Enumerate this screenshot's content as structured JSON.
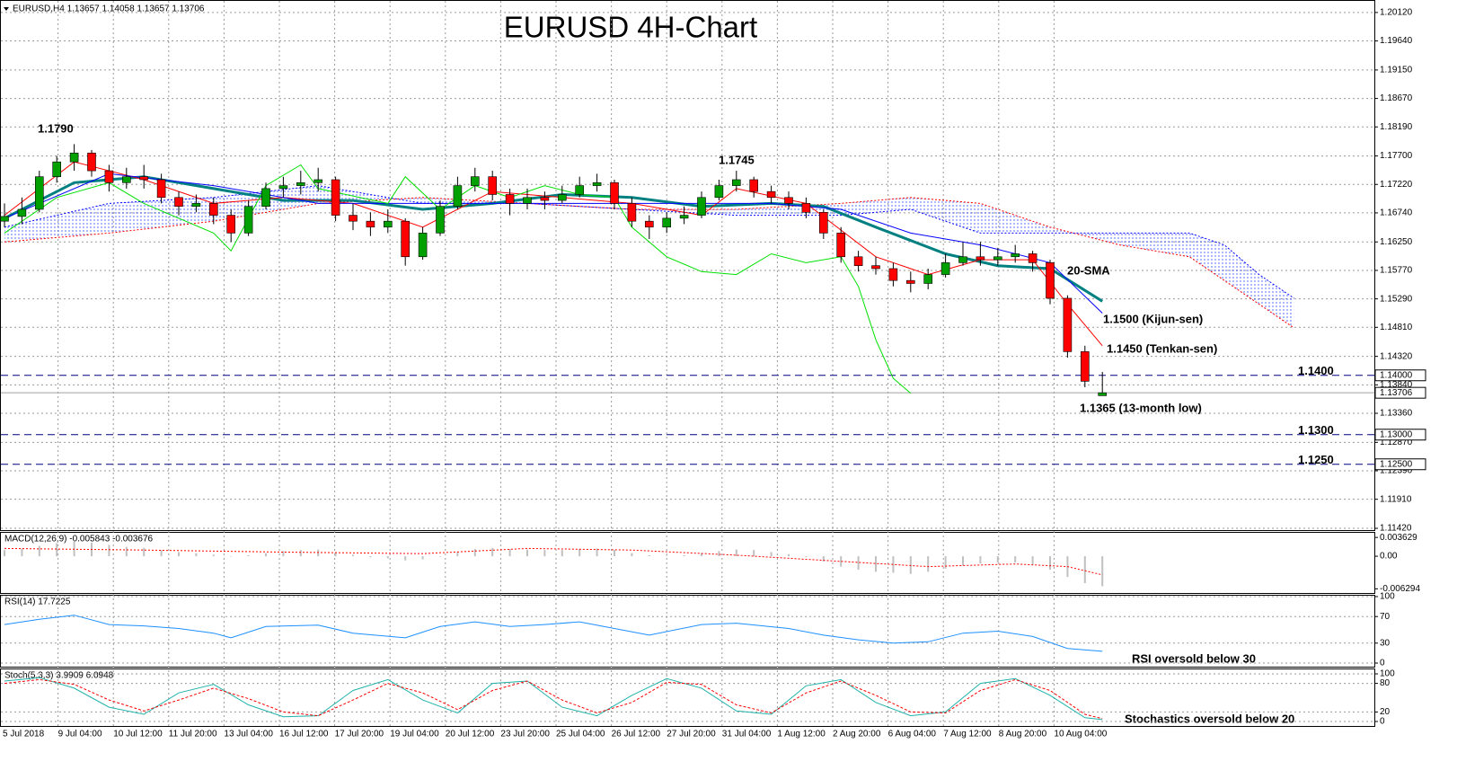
{
  "chart_data": {
    "type": "candlestick",
    "header": "EURUSD,H4  1.13657 1.14058 1.13657 1.13706",
    "title": "EURUSD 4H-Chart",
    "categories": [
      "5 Jul 2018",
      "9 Jul 04:00",
      "10 Jul 12:00",
      "11 Jul 20:00",
      "13 Jul 04:00",
      "16 Jul 12:00",
      "17 Jul 20:00",
      "19 Jul 04:00",
      "20 Jul 12:00",
      "23 Jul 20:00",
      "25 Jul 04:00",
      "26 Jul 12:00",
      "27 Jul 20:00",
      "31 Jul 04:00",
      "1 Aug 12:00",
      "2 Aug 20:00",
      "6 Aug 04:00",
      "7 Aug 12:00",
      "8 Aug 20:00",
      "10 Aug 04:00"
    ],
    "up_color": "#00a000",
    "down_color": "#ff0000",
    "candles": [
      [
        1.166,
        1.169,
        1.165,
        1.1668
      ],
      [
        1.1668,
        1.17,
        1.1655,
        1.168
      ],
      [
        1.168,
        1.1745,
        1.1675,
        1.1735
      ],
      [
        1.1735,
        1.177,
        1.1725,
        1.176
      ],
      [
        1.176,
        1.179,
        1.1745,
        1.1775
      ],
      [
        1.1775,
        1.178,
        1.1735,
        1.1745
      ],
      [
        1.1745,
        1.1755,
        1.171,
        1.1725
      ],
      [
        1.1725,
        1.175,
        1.1715,
        1.1735
      ],
      [
        1.1735,
        1.1755,
        1.1715,
        1.173
      ],
      [
        1.173,
        1.174,
        1.169,
        1.17
      ],
      [
        1.17,
        1.171,
        1.167,
        1.1685
      ],
      [
        1.1685,
        1.1705,
        1.1675,
        1.169
      ],
      [
        1.169,
        1.17,
        1.1655,
        1.167
      ],
      [
        1.167,
        1.168,
        1.1625,
        1.164
      ],
      [
        1.164,
        1.1695,
        1.1635,
        1.1685
      ],
      [
        1.1685,
        1.1725,
        1.168,
        1.1715
      ],
      [
        1.1715,
        1.1735,
        1.17,
        1.172
      ],
      [
        1.172,
        1.1745,
        1.1705,
        1.1725
      ],
      [
        1.1725,
        1.175,
        1.171,
        1.173
      ],
      [
        1.173,
        1.1735,
        1.166,
        1.167
      ],
      [
        1.167,
        1.169,
        1.1645,
        1.166
      ],
      [
        1.166,
        1.1675,
        1.1635,
        1.165
      ],
      [
        1.165,
        1.168,
        1.164,
        1.166
      ],
      [
        1.166,
        1.1665,
        1.1585,
        1.16
      ],
      [
        1.16,
        1.165,
        1.1595,
        1.164
      ],
      [
        1.164,
        1.1695,
        1.1635,
        1.1685
      ],
      [
        1.1685,
        1.1735,
        1.168,
        1.172
      ],
      [
        1.172,
        1.175,
        1.171,
        1.1735
      ],
      [
        1.1735,
        1.1745,
        1.1695,
        1.1705
      ],
      [
        1.1705,
        1.1715,
        1.167,
        1.169
      ],
      [
        1.169,
        1.1715,
        1.168,
        1.17
      ],
      [
        1.17,
        1.171,
        1.168,
        1.1695
      ],
      [
        1.1695,
        1.172,
        1.169,
        1.1705
      ],
      [
        1.1705,
        1.1735,
        1.17,
        1.172
      ],
      [
        1.172,
        1.174,
        1.171,
        1.1725
      ],
      [
        1.1725,
        1.173,
        1.168,
        1.169
      ],
      [
        1.169,
        1.17,
        1.165,
        1.166
      ],
      [
        1.166,
        1.167,
        1.163,
        1.165
      ],
      [
        1.165,
        1.1675,
        1.164,
        1.1665
      ],
      [
        1.1665,
        1.1685,
        1.1655,
        1.167
      ],
      [
        1.167,
        1.171,
        1.1665,
        1.17
      ],
      [
        1.17,
        1.173,
        1.1695,
        1.172
      ],
      [
        1.172,
        1.1745,
        1.171,
        1.173
      ],
      [
        1.173,
        1.1735,
        1.17,
        1.171
      ],
      [
        1.171,
        1.172,
        1.169,
        1.17
      ],
      [
        1.17,
        1.171,
        1.168,
        1.169
      ],
      [
        1.169,
        1.17,
        1.1665,
        1.1675
      ],
      [
        1.1675,
        1.168,
        1.163,
        1.164
      ],
      [
        1.164,
        1.165,
        1.159,
        1.16
      ],
      [
        1.16,
        1.161,
        1.1575,
        1.1585
      ],
      [
        1.1585,
        1.16,
        1.157,
        1.158
      ],
      [
        1.158,
        1.159,
        1.155,
        1.156
      ],
      [
        1.156,
        1.1575,
        1.154,
        1.1555
      ],
      [
        1.1555,
        1.158,
        1.1545,
        1.157
      ],
      [
        1.157,
        1.1605,
        1.1565,
        1.159
      ],
      [
        1.159,
        1.1625,
        1.1585,
        1.16
      ],
      [
        1.16,
        1.1625,
        1.1585,
        1.1595
      ],
      [
        1.1595,
        1.1615,
        1.1585,
        1.16
      ],
      [
        1.16,
        1.162,
        1.159,
        1.1605
      ],
      [
        1.1605,
        1.161,
        1.1575,
        1.159
      ],
      [
        1.159,
        1.1595,
        1.152,
        1.153
      ],
      [
        1.153,
        1.1535,
        1.143,
        1.144
      ],
      [
        1.144,
        1.145,
        1.138,
        1.139
      ],
      [
        1.13657,
        1.14058,
        1.13657,
        1.13706
      ]
    ],
    "ylim": [
      1.1139,
      1.203
    ],
    "yticks": [
      {
        "value": 1.2012,
        "label": "1.20120"
      },
      {
        "value": 1.1964,
        "label": "1.19640"
      },
      {
        "value": 1.1915,
        "label": "1.19150"
      },
      {
        "value": 1.1867,
        "label": "1.18670"
      },
      {
        "value": 1.1819,
        "label": "1.18190"
      },
      {
        "value": 1.177,
        "label": "1.17700"
      },
      {
        "value": 1.1722,
        "label": "1.17220"
      },
      {
        "value": 1.1674,
        "label": "1.16740"
      },
      {
        "value": 1.1625,
        "label": "1.16250"
      },
      {
        "value": 1.1577,
        "label": "1.15770"
      },
      {
        "value": 1.1529,
        "label": "1.15290"
      },
      {
        "value": 1.1481,
        "label": "1.14810"
      },
      {
        "value": 1.1432,
        "label": "1.14320"
      },
      {
        "value": 1.1384,
        "label": "1.13840"
      },
      {
        "value": 1.1336,
        "label": "1.13360"
      },
      {
        "value": 1.1287,
        "label": "1.12870"
      },
      {
        "value": 1.1239,
        "label": "1.12390"
      },
      {
        "value": 1.1191,
        "label": "1.11910"
      },
      {
        "value": 1.1142,
        "label": "1.11420"
      }
    ],
    "grid": true,
    "levels": [
      {
        "value": 1.14,
        "label": "1.1400",
        "axis_label": "1.14000",
        "color": "#000080"
      },
      {
        "value": 1.13,
        "label": "1.1300",
        "axis_label": "1.13000",
        "color": "#000080"
      },
      {
        "value": 1.125,
        "label": "1.1250",
        "axis_label": "1.12500",
        "color": "#000080"
      }
    ],
    "current_price": 1.13706,
    "lines": [
      {
        "color": "#008080",
        "width": 3,
        "x": [
          0,
          4,
          8,
          12,
          16,
          20,
          24,
          28,
          32,
          36,
          40,
          44,
          47,
          50,
          54,
          57,
          60,
          63
        ],
        "values": [
          1.1665,
          1.1725,
          1.1735,
          1.1715,
          1.1695,
          1.1695,
          1.168,
          1.169,
          1.1705,
          1.17,
          1.1685,
          1.169,
          1.1685,
          1.165,
          1.1605,
          1.1585,
          1.158,
          1.1525
        ]
      },
      {
        "color": "#ff0000",
        "width": 1,
        "x": [
          0,
          4,
          8,
          12,
          16,
          20,
          24,
          28,
          32,
          36,
          40,
          42,
          46,
          50,
          53,
          56,
          59,
          61,
          63
        ],
        "values": [
          1.167,
          1.176,
          1.173,
          1.169,
          1.17,
          1.169,
          1.165,
          1.171,
          1.17,
          1.169,
          1.167,
          1.1715,
          1.169,
          1.16,
          1.157,
          1.1595,
          1.1595,
          1.152,
          1.145
        ]
      },
      {
        "color": "#0000ff",
        "width": 1,
        "x": [
          0,
          6,
          12,
          18,
          24,
          28,
          32,
          38,
          44,
          48,
          52,
          56,
          60,
          63
        ],
        "values": [
          1.1665,
          1.174,
          1.172,
          1.169,
          1.169,
          1.169,
          1.169,
          1.169,
          1.169,
          1.168,
          1.164,
          1.162,
          1.159,
          1.1505
        ]
      },
      {
        "color": "#00e000",
        "width": 1,
        "x": [
          0,
          3,
          6,
          8,
          12,
          13,
          15,
          17,
          18,
          22,
          23,
          25,
          27,
          29,
          31,
          33,
          35,
          36,
          38,
          40,
          42,
          44,
          46,
          48,
          49,
          50,
          51,
          52
        ],
        "values": [
          1.164,
          1.17,
          1.1725,
          1.169,
          1.164,
          1.161,
          1.172,
          1.1755,
          1.1715,
          1.169,
          1.1735,
          1.168,
          1.172,
          1.17,
          1.172,
          1.1705,
          1.17,
          1.165,
          1.16,
          1.1575,
          1.157,
          1.1605,
          1.159,
          1.16,
          1.155,
          1.146,
          1.1395,
          1.137
        ]
      }
    ],
    "cloud": {
      "span_a": {
        "color": "#ff0000",
        "x": [
          0,
          6,
          12,
          18,
          24,
          30,
          36,
          42,
          48,
          52,
          56,
          60,
          64,
          68,
          72,
          74
        ],
        "values": [
          1.1625,
          1.164,
          1.166,
          1.169,
          1.17,
          1.169,
          1.168,
          1.168,
          1.169,
          1.17,
          1.169,
          1.165,
          1.162,
          1.16,
          1.152,
          1.148
        ]
      },
      "span_b": {
        "color": "#0000ff",
        "x": [
          0,
          6,
          12,
          18,
          24,
          30,
          36,
          42,
          48,
          52,
          56,
          60,
          64,
          68,
          70,
          72,
          74
        ],
        "values": [
          1.165,
          1.169,
          1.17,
          1.172,
          1.169,
          1.169,
          1.168,
          1.167,
          1.167,
          1.168,
          1.164,
          1.164,
          1.164,
          1.164,
          1.162,
          1.157,
          1.153
        ]
      }
    },
    "annotations": [
      {
        "text": "1.1790"
      },
      {
        "text": "1.1745"
      },
      {
        "text": "20-SMA",
        "color": "#008080"
      },
      {
        "text": "1.1500 (Kijun-sen)",
        "color": "#0000ff"
      },
      {
        "text": "1.1450 (Tenkan-sen)",
        "color": "#ff3000"
      },
      {
        "text": "1.1365 (13-month low)"
      }
    ],
    "macd": {
      "label": "MACD(12,26,9) -0.005843 -0.003676",
      "ylim": [
        -0.0071,
        0.0047
      ],
      "yticks": [
        0.003629,
        {
          "value": 0,
          "label": "0.00"
        },
        -0.006294
      ],
      "histogram": [
        0.0012,
        0.0015,
        0.002,
        0.0025,
        0.0028,
        0.0026,
        0.0022,
        0.0018,
        0.0016,
        0.0012,
        0.0008,
        0.0006,
        0.0003,
        0.0,
        0.0002,
        0.0006,
        0.001,
        0.0012,
        0.0013,
        0.0008,
        0.0003,
        -0.0002,
        -0.0004,
        -0.0008,
        -0.0006,
        0.0,
        0.0008,
        0.0014,
        0.0016,
        0.0014,
        0.0013,
        0.0012,
        0.0012,
        0.0014,
        0.0015,
        0.0012,
        0.0006,
        0.0002,
        0.0001,
        0.0002,
        0.0006,
        0.001,
        0.0013,
        0.0012,
        0.0008,
        0.0004,
        -0.0002,
        -0.001,
        -0.002,
        -0.0026,
        -0.003,
        -0.0032,
        -0.0034,
        -0.003,
        -0.0024,
        -0.0018,
        -0.0014,
        -0.0012,
        -0.0012,
        -0.0016,
        -0.0026,
        -0.004,
        -0.0052,
        -0.0058
      ],
      "histogram_color": "#c0c0c0",
      "signal": {
        "color": "#ff0000",
        "x": [
          0,
          8,
          16,
          24,
          30,
          36,
          42,
          48,
          53,
          58,
          61,
          63
        ],
        "values": [
          0.0015,
          0.0012,
          0.0008,
          0.0005,
          0.0015,
          0.0012,
          0.0002,
          -0.001,
          -0.002,
          -0.0015,
          -0.002,
          -0.0036
        ]
      }
    },
    "rsi": {
      "label": "RSI(14) 17.7225",
      "ylim": [
        0,
        100
      ],
      "yticks": [
        0,
        30,
        70,
        100
      ],
      "line": {
        "color": "#1e90ff",
        "x": [
          0,
          2,
          4,
          6,
          8,
          10,
          12,
          13,
          15,
          18,
          20,
          23,
          25,
          27,
          29,
          31,
          33,
          35,
          37,
          40,
          42,
          45,
          47,
          49,
          51,
          53,
          55,
          57,
          59,
          61,
          63
        ],
        "values": [
          58,
          66,
          72,
          58,
          56,
          52,
          45,
          38,
          55,
          57,
          45,
          38,
          55,
          62,
          55,
          58,
          62,
          52,
          42,
          58,
          60,
          52,
          42,
          35,
          30,
          32,
          45,
          48,
          40,
          22,
          17.7225
        ]
      },
      "annotation": "RSI oversold below 30"
    },
    "stoch": {
      "label": "Stoch(5,3,3) 3.9909 6.0948",
      "ylim": [
        0,
        100
      ],
      "yticks": [
        0,
        20,
        80,
        100
      ],
      "k": {
        "color": "#20b2aa",
        "x": [
          0,
          2,
          4,
          6,
          8,
          10,
          12,
          14,
          16,
          18,
          20,
          22,
          24,
          26,
          28,
          30,
          32,
          34,
          36,
          38,
          40,
          42,
          44,
          46,
          48,
          50,
          52,
          54,
          56,
          58,
          60,
          62,
          63
        ],
        "values": [
          85,
          92,
          70,
          30,
          15,
          60,
          78,
          35,
          10,
          12,
          65,
          88,
          45,
          18,
          80,
          85,
          30,
          12,
          55,
          90,
          70,
          22,
          15,
          75,
          88,
          40,
          12,
          20,
          80,
          90,
          55,
          8,
          3.9909
        ]
      },
      "d": {
        "color": "#ff0000",
        "x": [
          0,
          2,
          4,
          6,
          8,
          10,
          12,
          14,
          16,
          18,
          20,
          22,
          24,
          26,
          28,
          30,
          32,
          34,
          36,
          38,
          40,
          42,
          44,
          46,
          48,
          50,
          52,
          54,
          56,
          58,
          60,
          62,
          63
        ],
        "values": [
          80,
          88,
          78,
          45,
          22,
          45,
          70,
          48,
          20,
          12,
          45,
          80,
          60,
          25,
          65,
          85,
          45,
          18,
          40,
          82,
          78,
          35,
          18,
          60,
          85,
          55,
          20,
          18,
          65,
          88,
          65,
          15,
          6.0948
        ]
      },
      "annotation": "Stochastics oversold below 20"
    }
  }
}
